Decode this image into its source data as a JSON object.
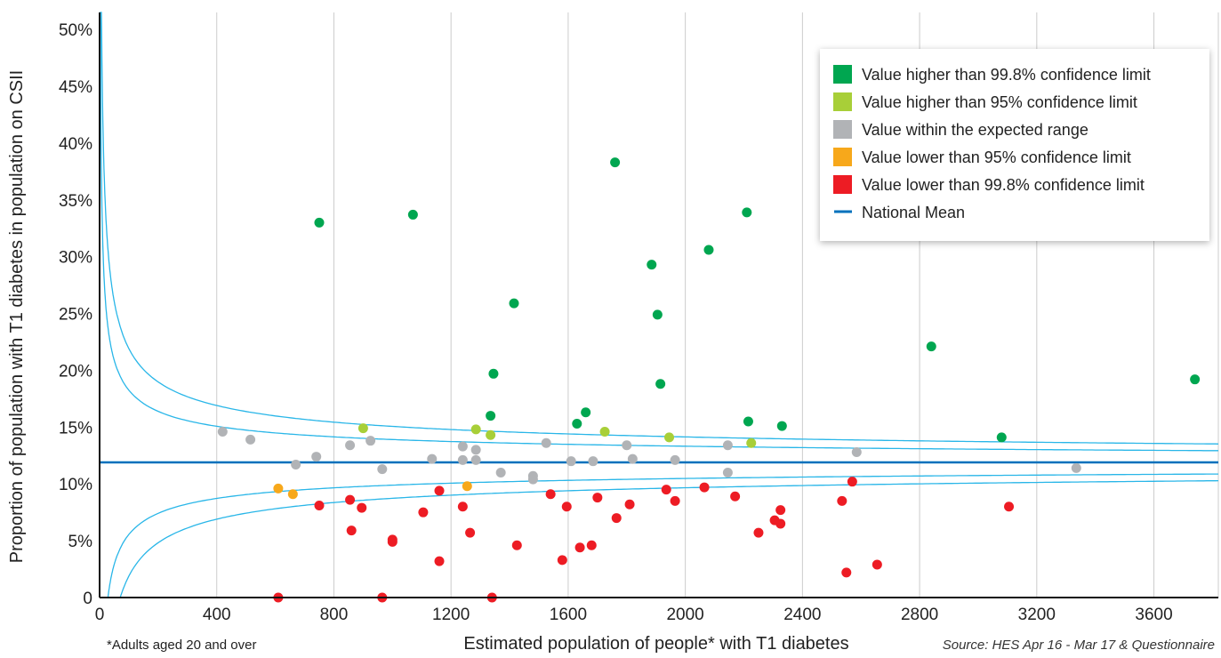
{
  "chart_data": {
    "type": "scatter",
    "xlabel": "Estimated population of people* with T1 diabetes",
    "ylabel": "Proportion of population with T1 diabetes in population on CSII",
    "footnote": "*Adults aged 20 and over",
    "source": "Source: HES Apr 16 - Mar 17 & Questionnaire",
    "xlim": [
      0,
      3820
    ],
    "ylim": [
      0,
      51.5
    ],
    "x_ticks": [
      0,
      400,
      800,
      1200,
      1600,
      2000,
      2400,
      2800,
      3200,
      3600
    ],
    "y_ticks": [
      0,
      5,
      10,
      15,
      20,
      25,
      30,
      35,
      40,
      45,
      50
    ],
    "y_tick_labels": [
      "0",
      "5%",
      "10%",
      "15%",
      "20%",
      "25%",
      "30%",
      "35%",
      "40%",
      "45%",
      "50%"
    ],
    "grid": "vertical",
    "legend_position": "top-right",
    "national_mean": 11.9,
    "national_mean_label": "National Mean",
    "colors": {
      "high998": "#00a650",
      "high95": "#a8cf38",
      "expected": "#b1b3b6",
      "low95": "#f7a81b",
      "low998": "#ed1c24",
      "mean": "#0071bc",
      "limits": "#29b6e8"
    },
    "series": [
      {
        "name": "Value higher than 99.8% confidence limit",
        "key": "high998",
        "points": [
          [
            750,
            33.0
          ],
          [
            1070,
            33.7
          ],
          [
            1415,
            25.9
          ],
          [
            1345,
            19.7
          ],
          [
            1335,
            16.0
          ],
          [
            1630,
            15.3
          ],
          [
            1660,
            16.3
          ],
          [
            1760,
            38.3
          ],
          [
            1885,
            29.3
          ],
          [
            1905,
            24.9
          ],
          [
            1915,
            18.8
          ],
          [
            2080,
            30.6
          ],
          [
            2210,
            33.9
          ],
          [
            2215,
            15.5
          ],
          [
            2330,
            15.1
          ],
          [
            2840,
            22.1
          ],
          [
            3080,
            14.1
          ],
          [
            3740,
            19.2
          ]
        ]
      },
      {
        "name": "Value higher than 95% confidence limit",
        "key": "high95",
        "points": [
          [
            900,
            14.9
          ],
          [
            1285,
            14.8
          ],
          [
            1335,
            14.3
          ],
          [
            1725,
            14.6
          ],
          [
            1945,
            14.1
          ],
          [
            2225,
            13.6
          ]
        ]
      },
      {
        "name": "Value within the expected range",
        "key": "expected",
        "points": [
          [
            420,
            14.6
          ],
          [
            515,
            13.9
          ],
          [
            670,
            11.7
          ],
          [
            740,
            12.4
          ],
          [
            855,
            13.4
          ],
          [
            925,
            13.8
          ],
          [
            965,
            11.3
          ],
          [
            1135,
            12.2
          ],
          [
            1240,
            13.3
          ],
          [
            1240,
            12.1
          ],
          [
            1285,
            13.0
          ],
          [
            1285,
            12.1
          ],
          [
            1370,
            11.0
          ],
          [
            1480,
            10.7
          ],
          [
            1480,
            10.4
          ],
          [
            1525,
            13.6
          ],
          [
            1610,
            12.0
          ],
          [
            1685,
            12.0
          ],
          [
            1800,
            13.4
          ],
          [
            1820,
            12.2
          ],
          [
            1965,
            12.1
          ],
          [
            2145,
            13.4
          ],
          [
            2145,
            11.0
          ],
          [
            2585,
            12.8
          ],
          [
            3335,
            11.4
          ]
        ]
      },
      {
        "name": "Value lower than 95% confidence limit",
        "key": "low95",
        "points": [
          [
            610,
            9.6
          ],
          [
            660,
            9.1
          ],
          [
            1255,
            9.8
          ]
        ]
      },
      {
        "name": "Value lower than 99.8% confidence limit",
        "key": "low998",
        "points": [
          [
            610,
            0.0
          ],
          [
            750,
            8.1
          ],
          [
            855,
            8.6
          ],
          [
            860,
            5.9
          ],
          [
            895,
            7.9
          ],
          [
            1000,
            5.1
          ],
          [
            1000,
            4.9
          ],
          [
            965,
            0.0
          ],
          [
            1105,
            7.5
          ],
          [
            1160,
            9.4
          ],
          [
            1160,
            3.2
          ],
          [
            1240,
            8.0
          ],
          [
            1265,
            5.7
          ],
          [
            1340,
            0.0
          ],
          [
            1425,
            4.6
          ],
          [
            1540,
            9.1
          ],
          [
            1580,
            3.3
          ],
          [
            1595,
            8.0
          ],
          [
            1640,
            4.4
          ],
          [
            1680,
            4.6
          ],
          [
            1700,
            8.8
          ],
          [
            1765,
            7.0
          ],
          [
            1810,
            8.2
          ],
          [
            1935,
            9.5
          ],
          [
            1965,
            8.5
          ],
          [
            2065,
            9.7
          ],
          [
            2170,
            8.9
          ],
          [
            2250,
            5.7
          ],
          [
            2305,
            6.8
          ],
          [
            2325,
            7.7
          ],
          [
            2325,
            6.5
          ],
          [
            2535,
            8.5
          ],
          [
            2550,
            2.2
          ],
          [
            2570,
            10.2
          ],
          [
            2655,
            2.9
          ],
          [
            3105,
            8.0
          ]
        ]
      }
    ]
  }
}
